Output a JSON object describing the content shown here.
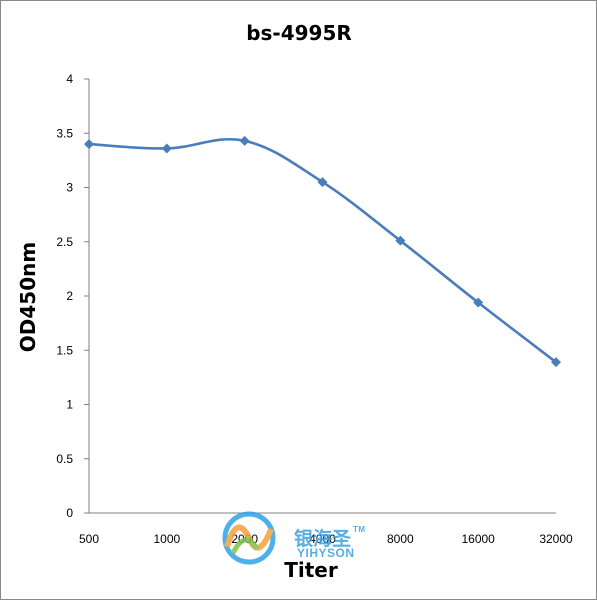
{
  "chart_data": {
    "type": "line",
    "title": "bs-4995R",
    "xlabel": "Titer",
    "ylabel": "OD450nm",
    "categories": [
      "500",
      "1000",
      "2000",
      "4000",
      "8000",
      "16000",
      "32000"
    ],
    "series": [
      {
        "values": [
          3.4,
          3.36,
          3.43,
          3.05,
          2.51,
          1.94,
          1.39
        ]
      }
    ],
    "ylim": [
      0,
      4
    ],
    "yticks": [
      "0",
      "0.5",
      "1",
      "1.5",
      "2",
      "2.5",
      "3",
      "3.5",
      "4"
    ],
    "grid": false,
    "legend": "none",
    "colors": {
      "line": "#4a7ebb",
      "marker": "#4a7ebb",
      "axis": "#808080"
    }
  },
  "watermark": {
    "brand_cn": "银海圣",
    "trademark": "TM",
    "brand_en": "YIHYSON",
    "colors": {
      "text": "#3aa0e0",
      "logo_a": "#2fa3e6",
      "logo_b": "#f2a13a",
      "logo_c": "#7cc24a"
    }
  }
}
